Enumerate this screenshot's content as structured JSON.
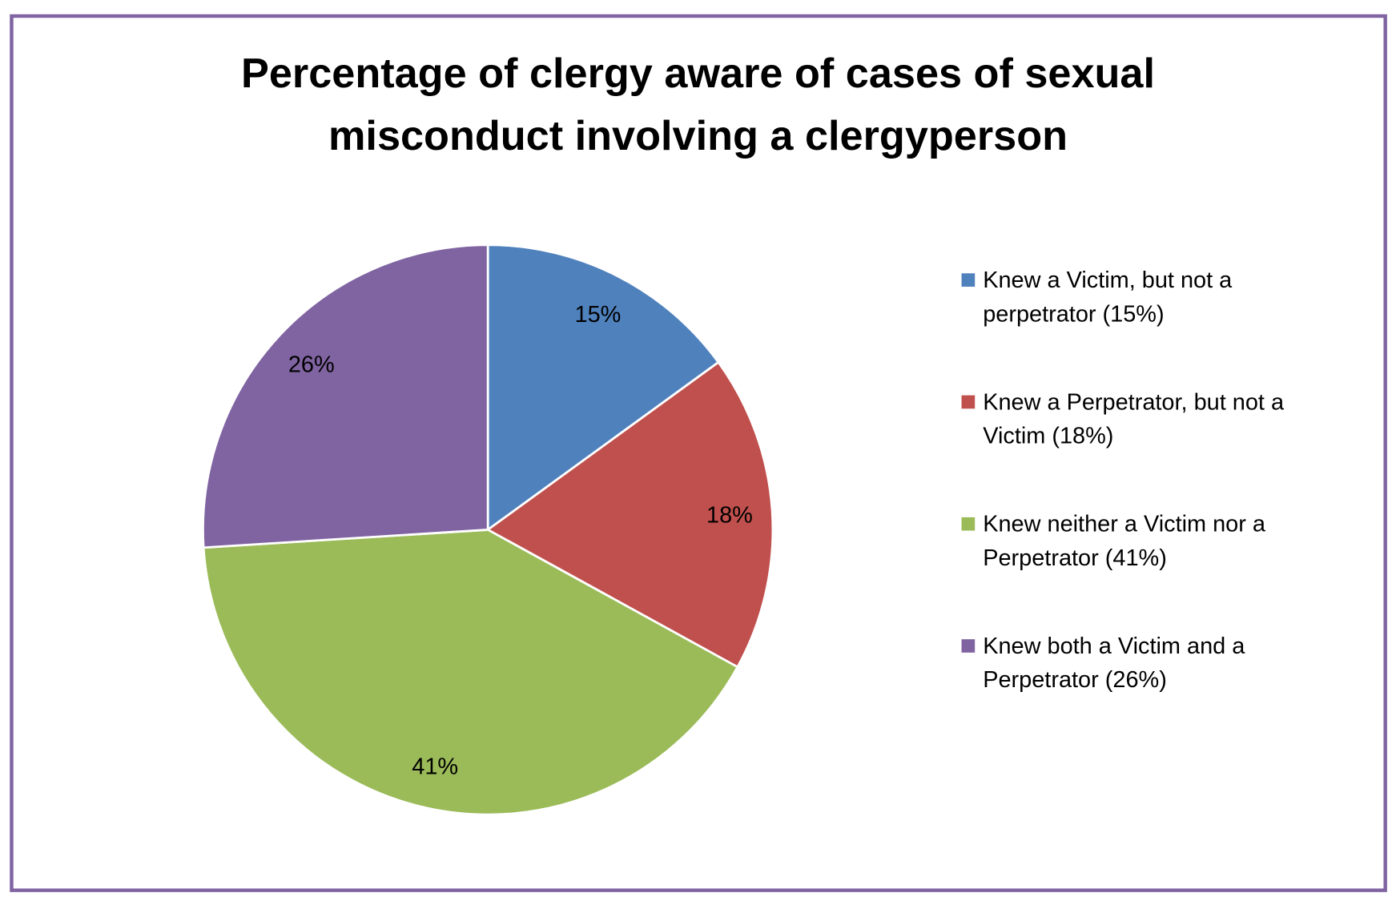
{
  "chart_data": {
    "type": "pie",
    "title": [
      "Percentage of clergy aware of cases of sexual",
      "misconduct involving a clergyperson"
    ],
    "legend_position": "right",
    "start": "top",
    "direction": "clockwise",
    "slices": [
      {
        "name": "Knew a Victim, but not a perpetrator (15%)",
        "legend_lines": [
          "Knew a Victim, but not a",
          "perpetrator (15%)"
        ],
        "value": 15,
        "label": "15%",
        "color": "#4f81bd"
      },
      {
        "name": "Knew a Perpetrator, but not a Victim (18%)",
        "legend_lines": [
          "Knew a Perpetrator, but not a",
          "Victim (18%)"
        ],
        "value": 18,
        "label": "18%",
        "color": "#c0504d"
      },
      {
        "name": "Knew neither a Victim nor a Perpetrator (41%)",
        "legend_lines": [
          "Knew neither a Victim nor a",
          "Perpetrator (41%)"
        ],
        "value": 41,
        "label": "41%",
        "color": "#9bbb59"
      },
      {
        "name": "Knew both a Victim and a Perpetrator (26%)",
        "legend_lines": [
          "Knew both a Victim and a",
          "Perpetrator (26%)"
        ],
        "value": 26,
        "label": "26%",
        "color": "#8064a2"
      }
    ],
    "frame_color": "#8064a2"
  }
}
